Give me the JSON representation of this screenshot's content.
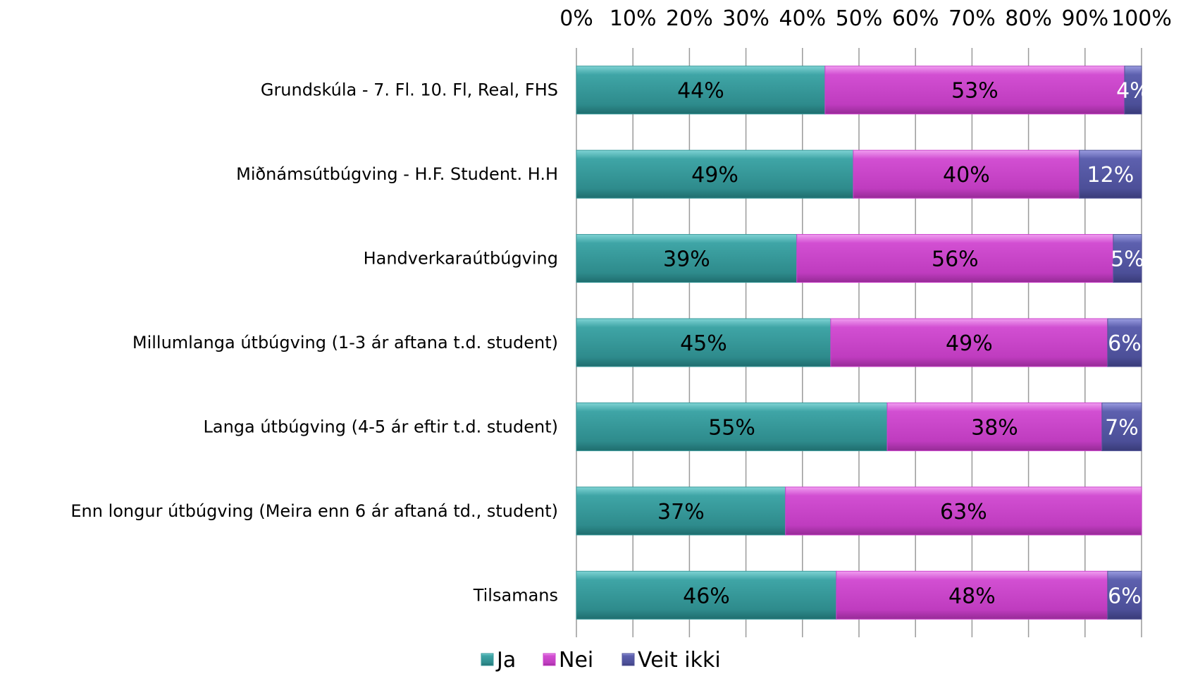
{
  "chart_data": {
    "type": "bar",
    "orientation": "horizontal",
    "stacked": true,
    "percent_stacked": true,
    "title": "",
    "xlabel": "",
    "ylabel": "",
    "xlim": [
      0,
      100
    ],
    "x_axis_position": "top",
    "ticks": [
      "0%",
      "10%",
      "20%",
      "30%",
      "40%",
      "50%",
      "60%",
      "70%",
      "80%",
      "90%",
      "100%"
    ],
    "grid": true,
    "legend_position": "bottom",
    "categories": [
      "Grundskúla - 7. Fl. 10. Fl, Real, FHS",
      "Miðnámsútbúgving - H.F. Student. H.H",
      "Handverkaraútbúgving",
      "Millumlanga útbúgving (1-3 ár aftana t.d. student)",
      "Langa útbúgving (4-5 ár eftir t.d. student)",
      "Enn longur útbúgving (Meira enn 6 ár aftaná td., student)",
      "Tilsamans"
    ],
    "series": [
      {
        "name": "Ja",
        "color": "#3a9a9b",
        "values": [
          44,
          49,
          39,
          45,
          55,
          37,
          46
        ],
        "labels": [
          "44%",
          "49%",
          "39%",
          "45%",
          "55%",
          "37%",
          "46%"
        ]
      },
      {
        "name": "Nei",
        "color": "#cc44cc",
        "values": [
          53,
          40,
          56,
          49,
          38,
          63,
          48
        ],
        "labels": [
          "53%",
          "40%",
          "56%",
          "49%",
          "38%",
          "63%",
          "48%"
        ]
      },
      {
        "name": "Veit ikki",
        "color": "#53559a",
        "values": [
          4,
          12,
          5,
          6,
          7,
          0,
          6
        ],
        "labels": [
          "4%",
          "12%",
          "5%",
          "6%",
          "7%",
          "",
          "6%"
        ]
      }
    ]
  }
}
